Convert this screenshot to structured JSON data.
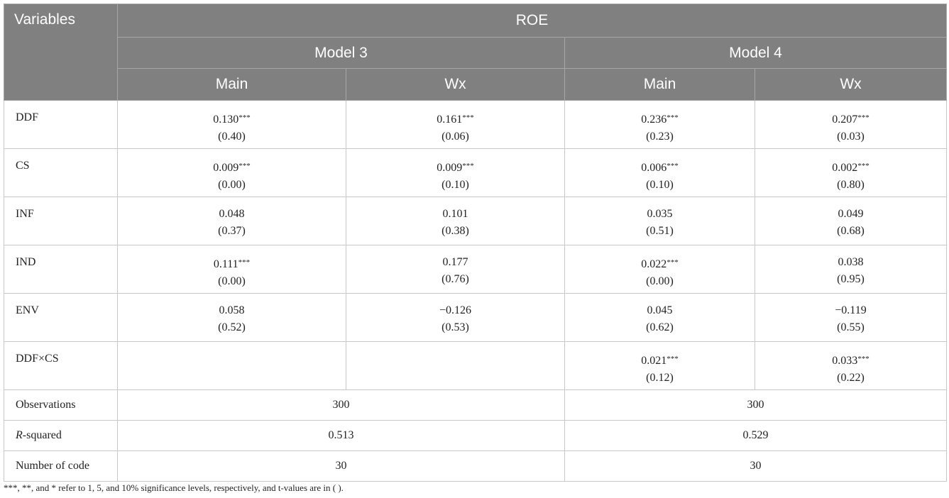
{
  "header": {
    "variables": "Variables",
    "dependent": "ROE",
    "models": [
      "Model 3",
      "Model 4"
    ],
    "subcolumns": [
      "Main",
      "Wx",
      "Main",
      "Wx"
    ]
  },
  "rows": [
    {
      "variable": "DDF",
      "cells": [
        {
          "coef": "0.130",
          "stars": "***",
          "t": "(0.40)"
        },
        {
          "coef": "0.161",
          "stars": "***",
          "t": "(0.06)"
        },
        {
          "coef": "0.236",
          "stars": "***",
          "t": "(0.23)"
        },
        {
          "coef": "0.207",
          "stars": "***",
          "t": "(0.03)"
        }
      ]
    },
    {
      "variable": "CS",
      "cells": [
        {
          "coef": "0.009",
          "stars": "***",
          "t": "(0.00)"
        },
        {
          "coef": "0.009",
          "stars": "***",
          "t": "(0.10)"
        },
        {
          "coef": "0.006",
          "stars": "***",
          "t": "(0.10)"
        },
        {
          "coef": "0.002",
          "stars": "***",
          "t": "(0.80)"
        }
      ]
    },
    {
      "variable": "INF",
      "cells": [
        {
          "coef": "0.048",
          "t": "(0.37)"
        },
        {
          "coef": "0.101",
          "t": "(0.38)"
        },
        {
          "coef": "0.035",
          "t": "(0.51)"
        },
        {
          "coef": "0.049",
          "t": "(0.68)"
        }
      ]
    },
    {
      "variable": "IND",
      "cells": [
        {
          "coef": "0.111",
          "stars": "***",
          "t": "(0.00)"
        },
        {
          "coef": "0.177",
          "t": "(0.76)"
        },
        {
          "coef": "0.022",
          "stars": "***",
          "t": "(0.00)"
        },
        {
          "coef": "0.038",
          "t": "(0.95)"
        }
      ]
    },
    {
      "variable": "ENV",
      "cells": [
        {
          "coef": "0.058",
          "t": "(0.52)"
        },
        {
          "coef": "−0.126",
          "t": "(0.53)"
        },
        {
          "coef": "0.045",
          "t": "(0.62)"
        },
        {
          "coef": "−0.119",
          "t": "(0.55)"
        }
      ]
    },
    {
      "variable": "DDF×CS",
      "cells": [
        null,
        null,
        {
          "coef": "0.021",
          "stars": "***",
          "t": "(0.12)"
        },
        {
          "coef": "0.033",
          "stars": "***",
          "t": "(0.22)"
        }
      ]
    }
  ],
  "summary": [
    {
      "variable": "Observations",
      "values": [
        300,
        300
      ]
    },
    {
      "variable_italic": "R",
      "variable": "-squared",
      "values": [
        0.513,
        0.529
      ]
    },
    {
      "variable": "Number of code",
      "values": [
        30,
        30
      ]
    }
  ],
  "footnote": "***, **, and * refer to 1, 5, and 10% significance levels, respectively, and t-values are in ( )."
}
